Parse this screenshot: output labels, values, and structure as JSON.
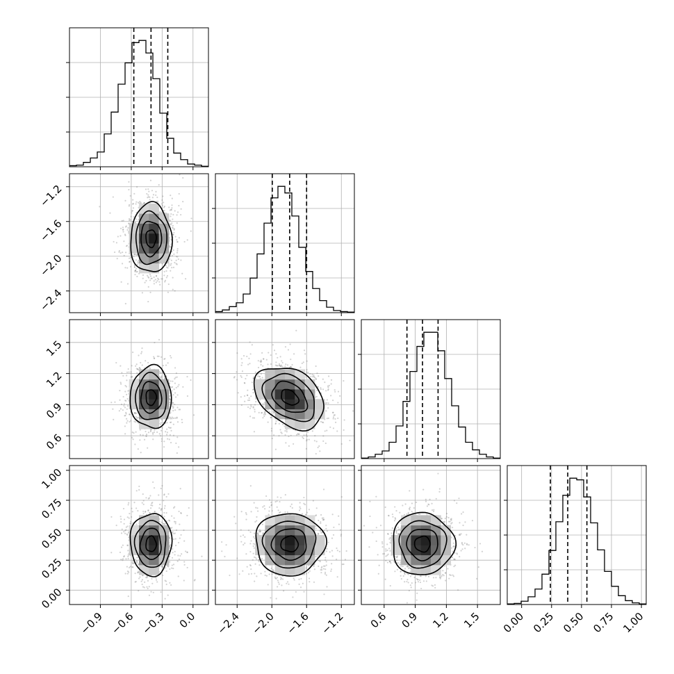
{
  "figure": {
    "type": "corner-plot",
    "background": "#ffffff",
    "grid": true,
    "grid_color": "#b0b0b0",
    "scatter_color": "#7f7f7f",
    "density_colormap": "grayscale",
    "contour_color": "#000000"
  },
  "chart_data": {
    "type": "corner",
    "parameters": [
      {
        "id": "p0",
        "range": [
          -1.2,
          0.15
        ],
        "ticks": [
          -0.9,
          -0.6,
          -0.3,
          0.0
        ],
        "tick_labels": [
          "−0.9",
          "−0.6",
          "−0.3",
          "0.0"
        ],
        "quantiles": [
          -0.575,
          -0.408,
          -0.245
        ],
        "mean": -0.408,
        "sd": 0.1
      },
      {
        "id": "p1",
        "range": [
          -2.65,
          -1.05
        ],
        "ticks": [
          -2.4,
          -2.0,
          -1.6,
          -1.2
        ],
        "tick_labels": [
          "−2.4",
          "−2.0",
          "−1.6",
          "−1.2"
        ],
        "quantiles": [
          -1.995,
          -1.795,
          -1.6
        ],
        "mean": -1.795,
        "sd": 0.2
      },
      {
        "id": "p2",
        "range": [
          0.38,
          1.72
        ],
        "ticks": [
          0.6,
          0.9,
          1.2,
          1.5
        ],
        "tick_labels": [
          "0.6",
          "0.9",
          "1.2",
          "1.5"
        ],
        "quantiles": [
          0.82,
          0.97,
          1.12
        ],
        "mean": 0.97,
        "sd": 0.15
      },
      {
        "id": "p3",
        "range": [
          -0.12,
          1.04
        ],
        "ticks": [
          0.0,
          0.25,
          0.5,
          0.75,
          1.0
        ],
        "tick_labels": [
          "0.00",
          "0.25",
          "0.50",
          "0.75",
          "1.00"
        ],
        "quantiles": [
          0.24,
          0.385,
          0.545
        ],
        "mean": 0.385,
        "sd": 0.13
      }
    ],
    "histograms": [
      {
        "param": "p0",
        "counts": [
          2,
          3,
          8,
          16,
          27,
          60,
          100,
          151,
          190,
          227,
          231,
          208,
          161,
          98,
          52,
          25,
          13,
          5,
          3,
          1
        ]
      },
      {
        "param": "p1",
        "counts": [
          2,
          5,
          11,
          18,
          34,
          63,
          107,
          163,
          209,
          230,
          218,
          176,
          119,
          75,
          44,
          22,
          10,
          4,
          2,
          1
        ]
      },
      {
        "param": "p2",
        "counts": [
          1,
          3,
          8,
          14,
          30,
          60,
          105,
          160,
          206,
          232,
          232,
          198,
          147,
          97,
          58,
          30,
          16,
          8,
          3,
          1
        ]
      },
      {
        "param": "p3",
        "counts": [
          1,
          2,
          6,
          14,
          28,
          55,
          98,
          150,
          198,
          229,
          226,
          195,
          148,
          99,
          60,
          33,
          16,
          7,
          3,
          1
        ]
      }
    ],
    "pairs": [
      {
        "x": "p0",
        "y": "p1",
        "correlation": 0.0
      },
      {
        "x": "p0",
        "y": "p2",
        "correlation": 0.0
      },
      {
        "x": "p1",
        "y": "p2",
        "correlation": -0.35
      },
      {
        "x": "p0",
        "y": "p3",
        "correlation": 0.0
      },
      {
        "x": "p1",
        "y": "p3",
        "correlation": 0.0
      },
      {
        "x": "p2",
        "y": "p3",
        "correlation": 0.0
      }
    ],
    "contour_levels_sigma": [
      0.5,
      1.0,
      1.5,
      2.0
    ]
  }
}
